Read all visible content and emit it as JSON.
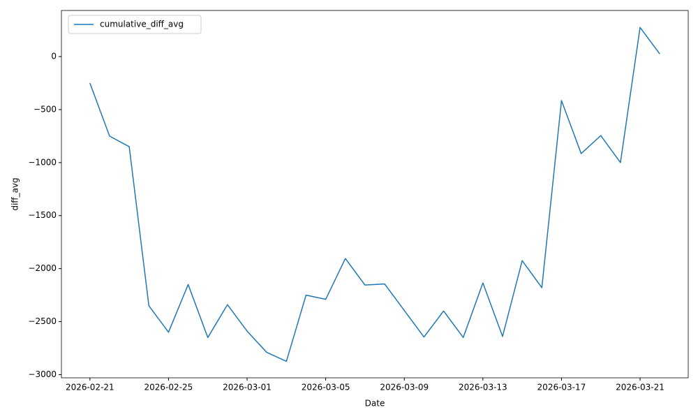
{
  "chart_data": {
    "type": "line",
    "x": [
      "2026-02-21",
      "2026-02-22",
      "2026-02-23",
      "2026-02-24",
      "2026-02-25",
      "2026-02-26",
      "2026-02-27",
      "2026-02-28",
      "2026-03-01",
      "2026-03-02",
      "2026-03-03",
      "2026-03-04",
      "2026-03-05",
      "2026-03-06",
      "2026-03-07",
      "2026-03-08",
      "2026-03-09",
      "2026-03-10",
      "2026-03-11",
      "2026-03-12",
      "2026-03-13",
      "2026-03-14",
      "2026-03-15",
      "2026-03-16",
      "2026-03-17",
      "2026-03-18",
      "2026-03-19",
      "2026-03-20",
      "2026-03-21",
      "2026-03-22"
    ],
    "series": [
      {
        "name": "cumulative_diff_avg",
        "color": "#1f77b4",
        "values": [
          -250,
          -750,
          -850,
          -2350,
          -2600,
          -2150,
          -2650,
          -2340,
          -2590,
          -2790,
          -2875,
          -2250,
          -2290,
          -1905,
          -2155,
          -2145,
          -2395,
          -2645,
          -2400,
          -2650,
          -2135,
          -2640,
          -1925,
          -2180,
          -415,
          -915,
          -745,
          -1000,
          275,
          25
        ]
      }
    ],
    "xlabel": "Date",
    "ylabel": "diff_avg",
    "xticks": [
      "2026-02-21",
      "2026-02-25",
      "2026-03-01",
      "2026-03-05",
      "2026-03-09",
      "2026-03-13",
      "2026-03-17",
      "2026-03-21"
    ],
    "ylim": [
      -3030,
      435
    ],
    "yticks": [
      {
        "value": -3000,
        "label": "−3000"
      },
      {
        "value": -2500,
        "label": "−2500"
      },
      {
        "value": -2000,
        "label": "−2000"
      },
      {
        "value": -1500,
        "label": "−1500"
      },
      {
        "value": -1000,
        "label": "−1000"
      },
      {
        "value": -500,
        "label": "−500"
      },
      0
    ],
    "legend": "upper left",
    "grid": false
  }
}
